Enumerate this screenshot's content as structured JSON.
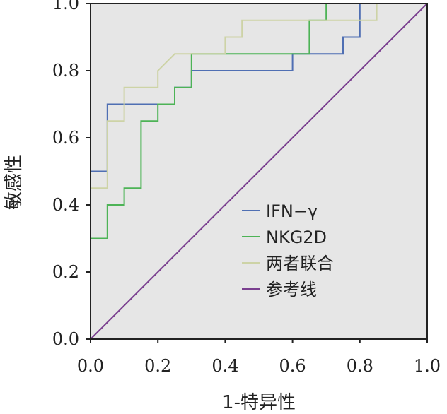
{
  "chart_data": {
    "type": "line",
    "xlabel": "1-特异性",
    "ylabel": "敏感性",
    "xlim": [
      0,
      1
    ],
    "ylim": [
      0,
      1
    ],
    "x_ticks": [
      "0.0",
      "0.2",
      "0.4",
      "0.6",
      "0.8",
      "1.0"
    ],
    "y_ticks": [
      "0.0",
      "0.2",
      "0.4",
      "0.6",
      "0.8",
      "1.0"
    ],
    "grid": false,
    "legend_position": "center-right",
    "plot_background": "#e6e6e6",
    "series": [
      {
        "name": "IFN−γ",
        "color": "#4f6fb3",
        "points": [
          [
            0,
            0
          ],
          [
            0,
            0.5
          ],
          [
            0.05,
            0.5
          ],
          [
            0.05,
            0.7
          ],
          [
            0.2,
            0.7
          ],
          [
            0.2,
            0.7
          ],
          [
            0.25,
            0.7
          ],
          [
            0.25,
            0.75
          ],
          [
            0.3,
            0.75
          ],
          [
            0.3,
            0.8
          ],
          [
            0.6,
            0.8
          ],
          [
            0.6,
            0.85
          ],
          [
            0.75,
            0.85
          ],
          [
            0.75,
            0.9
          ],
          [
            0.8,
            0.9
          ],
          [
            0.8,
            1.0
          ],
          [
            1.0,
            1.0
          ]
        ]
      },
      {
        "name": "NKG2D",
        "color": "#4db356",
        "points": [
          [
            0,
            0
          ],
          [
            0,
            0.3
          ],
          [
            0.05,
            0.3
          ],
          [
            0.05,
            0.4
          ],
          [
            0.1,
            0.4
          ],
          [
            0.1,
            0.45
          ],
          [
            0.15,
            0.45
          ],
          [
            0.15,
            0.65
          ],
          [
            0.2,
            0.65
          ],
          [
            0.2,
            0.7
          ],
          [
            0.25,
            0.7
          ],
          [
            0.25,
            0.75
          ],
          [
            0.3,
            0.75
          ],
          [
            0.3,
            0.85
          ],
          [
            0.65,
            0.85
          ],
          [
            0.65,
            0.95
          ],
          [
            0.7,
            0.95
          ],
          [
            0.7,
            1.0
          ],
          [
            1.0,
            1.0
          ]
        ]
      },
      {
        "name": "两者联合",
        "color": "#cdd3a6",
        "points": [
          [
            0,
            0
          ],
          [
            0,
            0.45
          ],
          [
            0.05,
            0.45
          ],
          [
            0.05,
            0.65
          ],
          [
            0.1,
            0.65
          ],
          [
            0.1,
            0.75
          ],
          [
            0.2,
            0.75
          ],
          [
            0.2,
            0.8
          ],
          [
            0.25,
            0.85
          ],
          [
            0.4,
            0.85
          ],
          [
            0.4,
            0.9
          ],
          [
            0.45,
            0.9
          ],
          [
            0.45,
            0.95
          ],
          [
            0.85,
            0.95
          ],
          [
            0.85,
            1.0
          ],
          [
            1.0,
            1.0
          ]
        ]
      },
      {
        "name": "参考线",
        "color": "#7a3f8f",
        "points": [
          [
            0,
            0
          ],
          [
            1,
            1
          ]
        ]
      }
    ]
  }
}
